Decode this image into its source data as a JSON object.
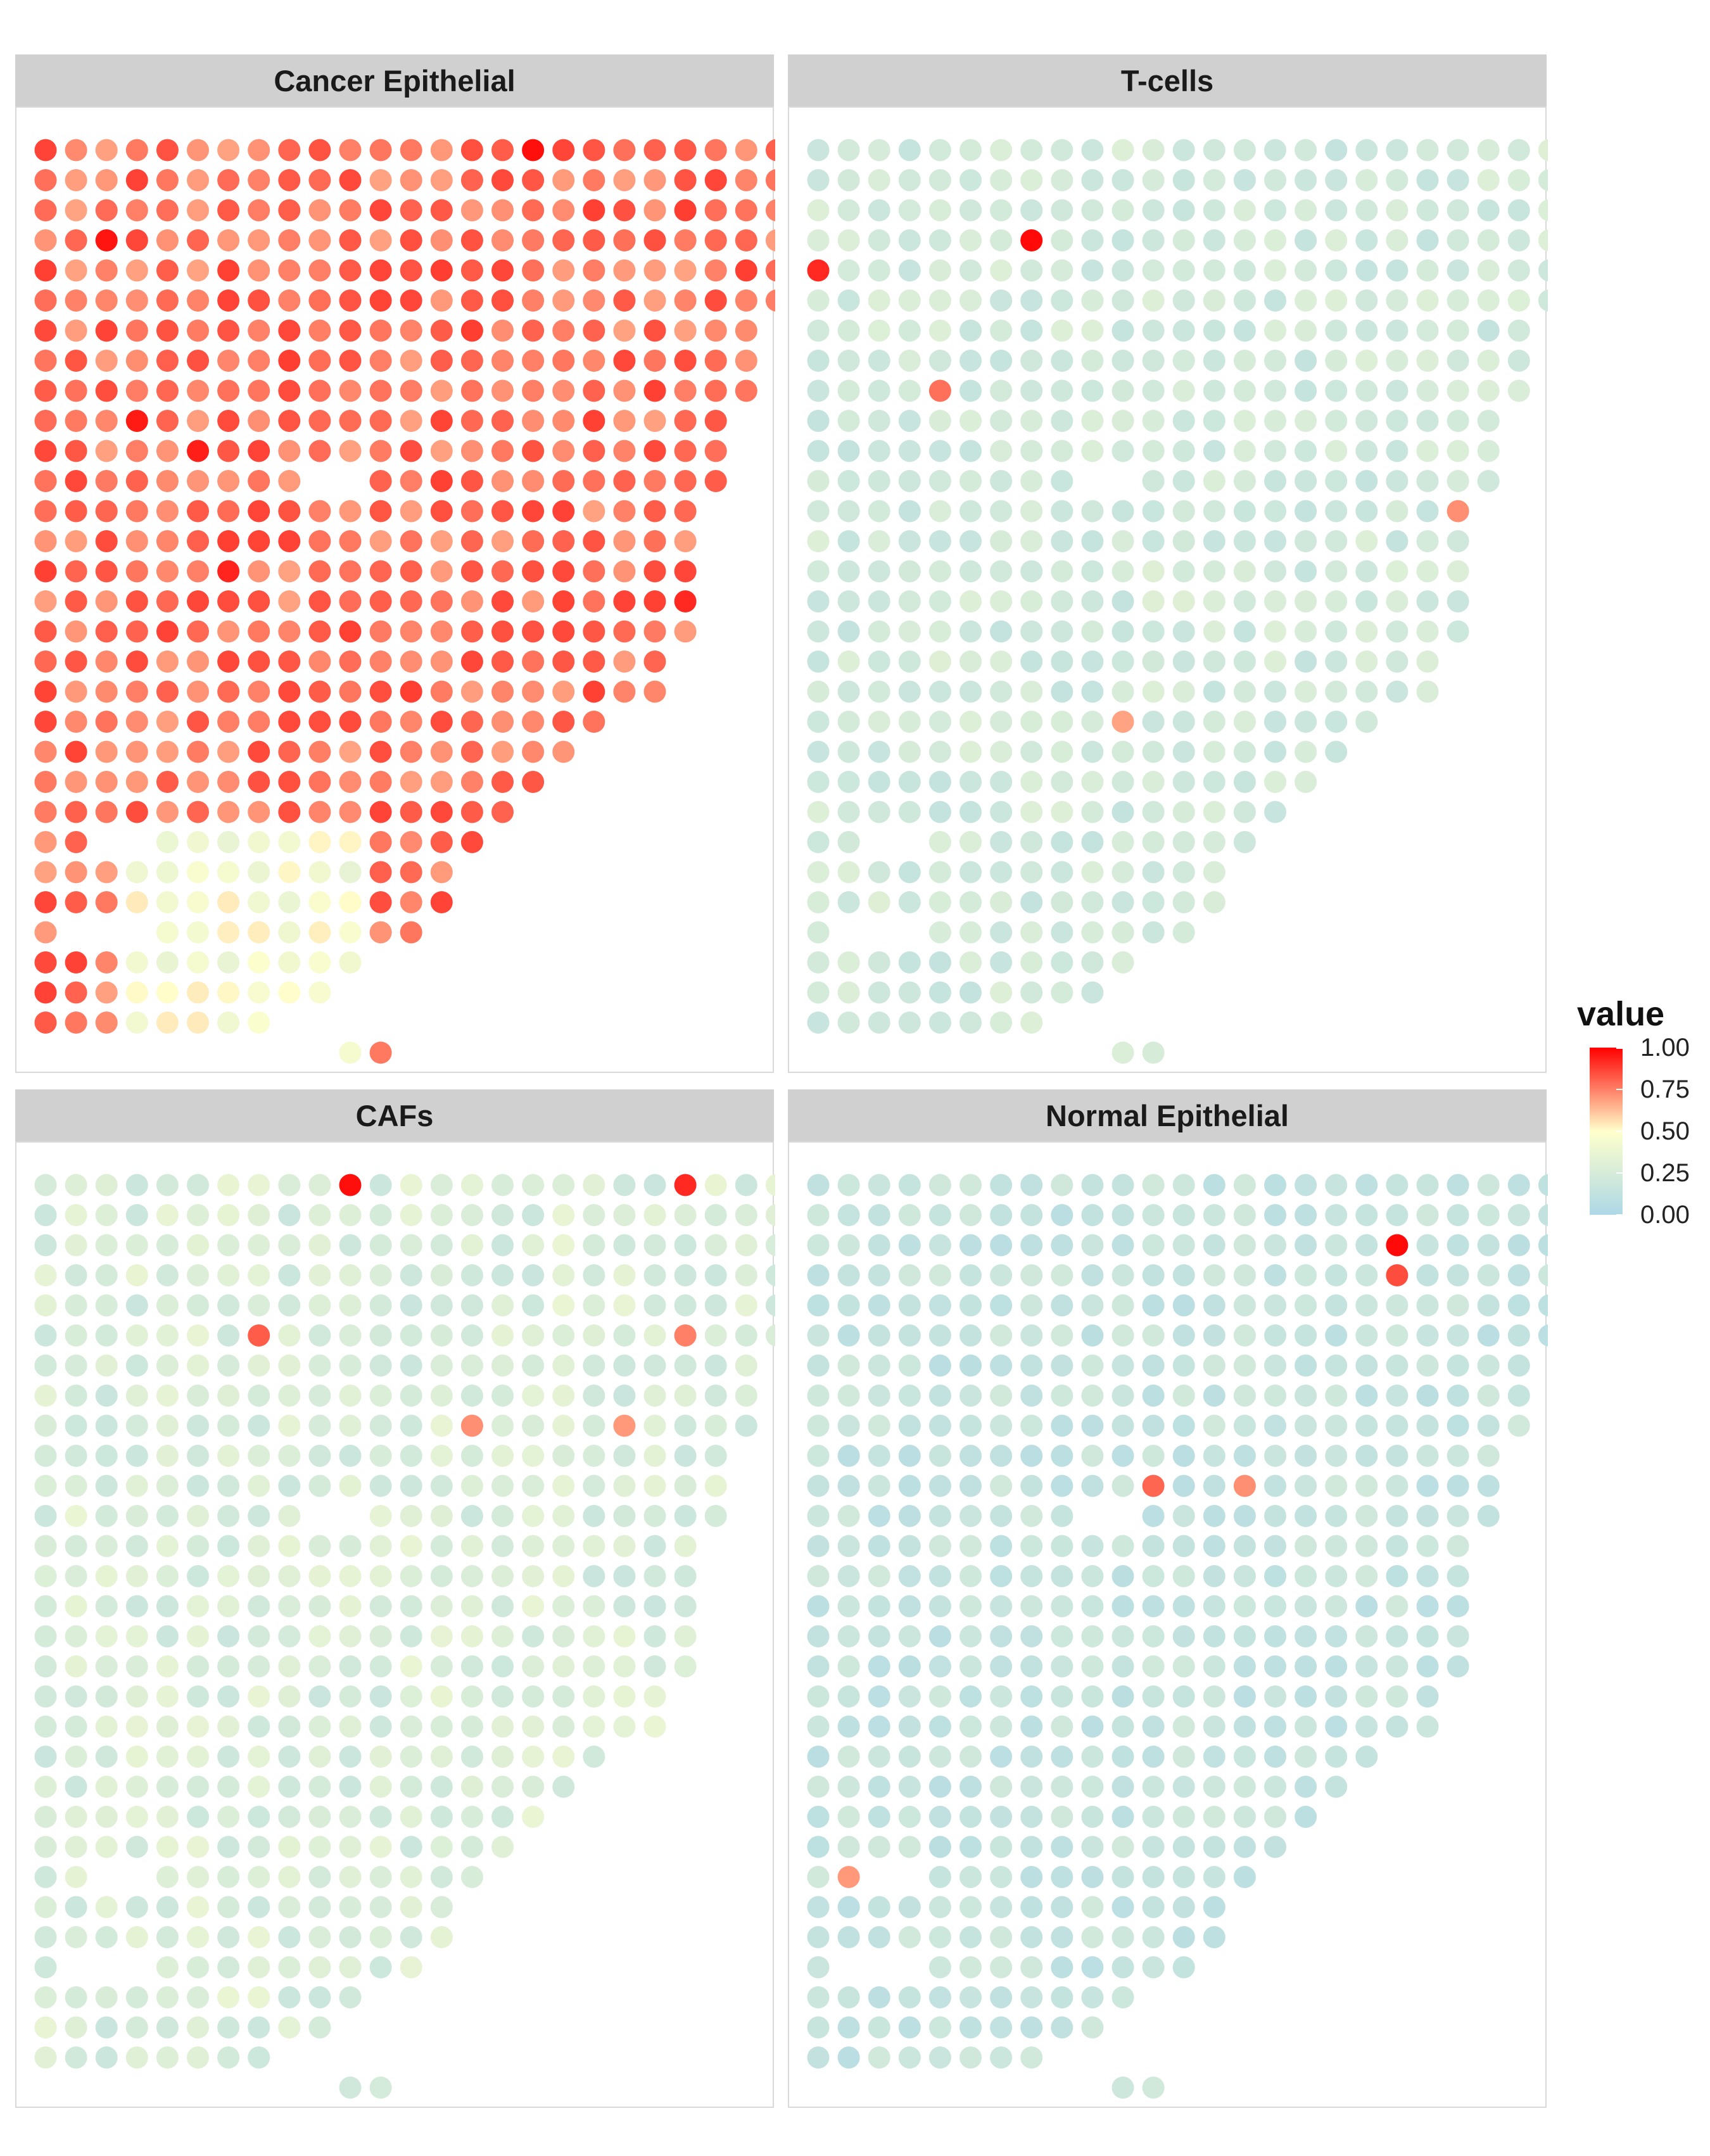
{
  "chart_data": {
    "type": "scatter",
    "subtype": "spatial spot map (faceted)",
    "legend": {
      "title": "value",
      "placement": "right",
      "range": [
        0,
        1
      ],
      "ticks": [
        "0.00",
        "0.25",
        "0.50",
        "0.75",
        "1.00"
      ],
      "colors": {
        "low": "#add8e6",
        "mid": "#ffffcc",
        "high": "#ff0000"
      }
    },
    "grid": false,
    "grid_spec": {
      "rows": 31,
      "cols": 25,
      "row_ranges": [
        [
          10,
          11
        ],
        [
          0,
          7
        ],
        [
          0,
          9
        ],
        [
          0,
          10
        ],
        [
          0,
          12
        ],
        [
          0,
          13
        ],
        [
          0,
          13
        ],
        [
          0,
          14
        ],
        [
          0,
          15
        ],
        [
          0,
          16
        ],
        [
          0,
          17
        ],
        [
          0,
          18
        ],
        [
          0,
          20
        ],
        [
          0,
          20
        ],
        [
          0,
          21
        ],
        [
          0,
          21
        ],
        [
          0,
          21
        ],
        [
          0,
          21
        ],
        [
          0,
          21
        ],
        [
          0,
          22
        ],
        [
          0,
          22
        ],
        [
          0,
          22
        ],
        [
          0,
          23
        ],
        [
          0,
          23
        ],
        [
          0,
          23
        ],
        [
          0,
          24
        ],
        [
          0,
          24
        ],
        [
          0,
          24
        ],
        [
          0,
          24
        ],
        [
          0,
          24
        ],
        [
          0,
          24
        ]
      ],
      "note": "rows counted from the tip of the tissue (row 0 = single bottom spot)"
    },
    "panels": [
      {
        "name": "Cancer Epithelial",
        "position": "top-left",
        "variant": 0,
        "base": 0.78,
        "spread": 0.1,
        "low_zone_value": 0.45,
        "hot_spots": [
          0.97,
          0.96,
          0.95,
          0.94,
          0.93,
          0.92
        ]
      },
      {
        "name": "T-cells",
        "position": "top-right",
        "variant": 1,
        "base": 0.22,
        "spread": 0.08,
        "low_zone_value": 0.22,
        "hot_spots": [
          0.98,
          0.92,
          0.78,
          0.72,
          0.68
        ]
      },
      {
        "name": "CAFs",
        "position": "bottom-left",
        "variant": 2,
        "base": 0.27,
        "spread": 0.1,
        "low_zone_value": 0.27,
        "hot_spots": [
          0.97,
          0.92,
          0.82,
          0.75,
          0.72,
          0.7
        ]
      },
      {
        "name": "Normal Epithelial",
        "position": "bottom-right",
        "variant": 3,
        "base": 0.15,
        "spread": 0.07,
        "low_zone_value": 0.15,
        "hot_spots": [
          0.98,
          0.85,
          0.8,
          0.72,
          0.7,
          0.68
        ]
      }
    ]
  }
}
